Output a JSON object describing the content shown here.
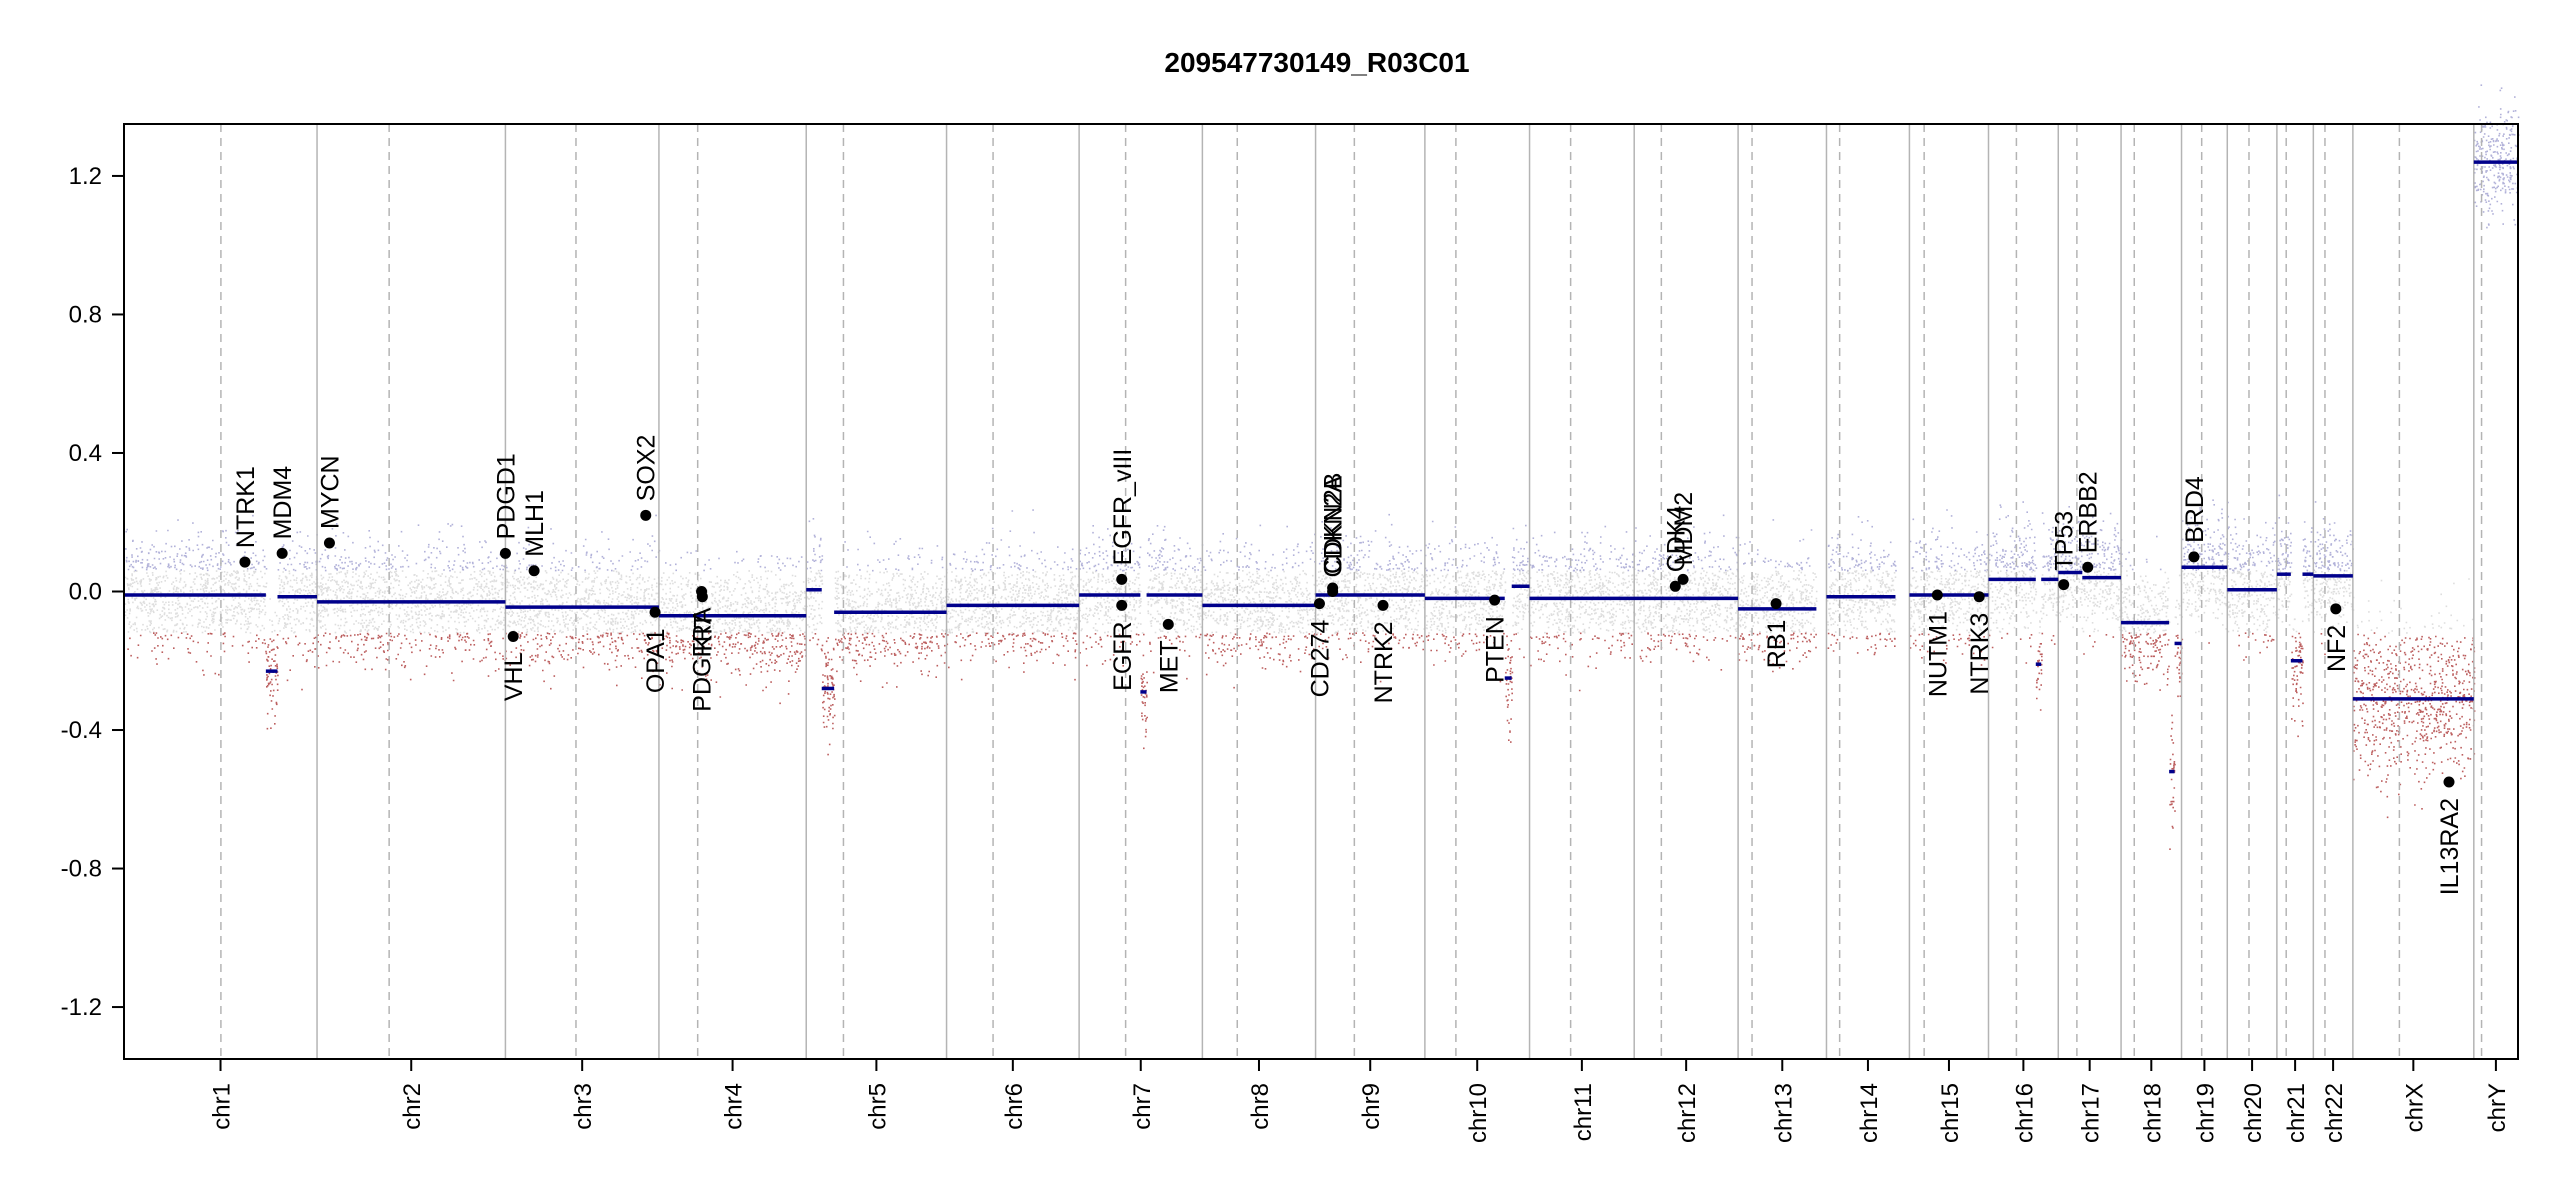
{
  "chart_data": {
    "type": "scatter",
    "title": "209547730149_R03C01",
    "xlabel": "",
    "ylabel": "",
    "ylim": [
      -1.35,
      1.35
    ],
    "yticks": [
      -1.2,
      -0.8,
      -0.4,
      0.0,
      0.4,
      0.8,
      1.2
    ],
    "grid": false,
    "colors": {
      "gain": "#7f7fbf",
      "loss": "#a52a2a",
      "neutral": "#c8c8c8",
      "segment": "#00008b",
      "point": "#000000",
      "boundary": "#b4b4b4"
    },
    "chromosomes": [
      {
        "name": "chr1",
        "start": 0,
        "end": 249,
        "centromere": 125
      },
      {
        "name": "chr2",
        "start": 249,
        "end": 492,
        "centromere": 93
      },
      {
        "name": "chr3",
        "start": 492,
        "end": 690,
        "centromere": 91
      },
      {
        "name": "chr4",
        "start": 690,
        "end": 880,
        "centromere": 50
      },
      {
        "name": "chr5",
        "start": 880,
        "end": 1061,
        "centromere": 48
      },
      {
        "name": "chr6",
        "start": 1061,
        "end": 1232,
        "centromere": 60
      },
      {
        "name": "chr7",
        "start": 1232,
        "end": 1391,
        "centromere": 60
      },
      {
        "name": "chr8",
        "start": 1391,
        "end": 1537,
        "centromere": 45
      },
      {
        "name": "chr9",
        "start": 1537,
        "end": 1678,
        "centromere": 50
      },
      {
        "name": "chr10",
        "start": 1678,
        "end": 1813,
        "centromere": 40
      },
      {
        "name": "chr11",
        "start": 1813,
        "end": 1948,
        "centromere": 53
      },
      {
        "name": "chr12",
        "start": 1948,
        "end": 2082,
        "centromere": 35
      },
      {
        "name": "chr13",
        "start": 2082,
        "end": 2196,
        "centromere": 18
      },
      {
        "name": "chr14",
        "start": 2196,
        "end": 2303,
        "centromere": 17
      },
      {
        "name": "chr15",
        "start": 2303,
        "end": 2405,
        "centromere": 19
      },
      {
        "name": "chr16",
        "start": 2405,
        "end": 2495,
        "centromere": 36
      },
      {
        "name": "chr17",
        "start": 2495,
        "end": 2576,
        "centromere": 24
      },
      {
        "name": "chr18",
        "start": 2576,
        "end": 2654,
        "centromere": 17
      },
      {
        "name": "chr19",
        "start": 2654,
        "end": 2713,
        "centromere": 26
      },
      {
        "name": "chr20",
        "start": 2713,
        "end": 2777,
        "centromere": 28
      },
      {
        "name": "chr21",
        "start": 2777,
        "end": 2824,
        "centromere": 12
      },
      {
        "name": "chr22",
        "start": 2824,
        "end": 2875,
        "centromere": 15
      },
      {
        "name": "chrX",
        "start": 2875,
        "end": 3031,
        "centromere": 60
      },
      {
        "name": "chrY",
        "start": 3031,
        "end": 3088,
        "centromere": 10
      }
    ],
    "segments": [
      {
        "start": 0,
        "end": 183,
        "value": -0.01
      },
      {
        "start": 183,
        "end": 198,
        "value": -0.23
      },
      {
        "start": 198,
        "end": 249,
        "value": -0.015
      },
      {
        "start": 249,
        "end": 492,
        "value": -0.03
      },
      {
        "start": 492,
        "end": 690,
        "value": -0.045
      },
      {
        "start": 690,
        "end": 880,
        "value": -0.07
      },
      {
        "start": 880,
        "end": 900,
        "value": 0.005
      },
      {
        "start": 900,
        "end": 916,
        "value": -0.28
      },
      {
        "start": 916,
        "end": 1061,
        "value": -0.06
      },
      {
        "start": 1061,
        "end": 1232,
        "value": -0.04
      },
      {
        "start": 1232,
        "end": 1311,
        "value": -0.01
      },
      {
        "start": 1311,
        "end": 1319,
        "value": -0.29
      },
      {
        "start": 1319,
        "end": 1391,
        "value": -0.01
      },
      {
        "start": 1391,
        "end": 1537,
        "value": -0.04
      },
      {
        "start": 1537,
        "end": 1678,
        "value": -0.01
      },
      {
        "start": 1678,
        "end": 1781,
        "value": -0.02
      },
      {
        "start": 1781,
        "end": 1790,
        "value": -0.25
      },
      {
        "start": 1790,
        "end": 1813,
        "value": 0.015
      },
      {
        "start": 1813,
        "end": 2082,
        "value": -0.02
      },
      {
        "start": 2082,
        "end": 2183,
        "value": -0.05
      },
      {
        "start": 2196,
        "end": 2285,
        "value": -0.015
      },
      {
        "start": 2303,
        "end": 2405,
        "value": -0.01
      },
      {
        "start": 2405,
        "end": 2466,
        "value": 0.035
      },
      {
        "start": 2466,
        "end": 2473,
        "value": -0.21
      },
      {
        "start": 2473,
        "end": 2495,
        "value": 0.035
      },
      {
        "start": 2495,
        "end": 2526,
        "value": 0.055
      },
      {
        "start": 2526,
        "end": 2576,
        "value": 0.04
      },
      {
        "start": 2576,
        "end": 2638,
        "value": -0.09
      },
      {
        "start": 2638,
        "end": 2645,
        "value": -0.52
      },
      {
        "start": 2645,
        "end": 2654,
        "value": -0.15
      },
      {
        "start": 2654,
        "end": 2713,
        "value": 0.07
      },
      {
        "start": 2713,
        "end": 2777,
        "value": 0.005
      },
      {
        "start": 2777,
        "end": 2795,
        "value": 0.05
      },
      {
        "start": 2795,
        "end": 2810,
        "value": -0.2
      },
      {
        "start": 2810,
        "end": 2824,
        "value": 0.05
      },
      {
        "start": 2824,
        "end": 2875,
        "value": 0.045
      },
      {
        "start": 2875,
        "end": 3031,
        "value": -0.31
      },
      {
        "start": 3031,
        "end": 3088,
        "value": 1.24
      }
    ],
    "genes": [
      {
        "name": "NTRK1",
        "x": 156,
        "y": 0.085,
        "side": "up"
      },
      {
        "name": "MDM4",
        "x": 204,
        "y": 0.11,
        "side": "up"
      },
      {
        "name": "MYCN",
        "x": 265,
        "y": 0.14,
        "side": "up"
      },
      {
        "name": "PDGD1",
        "x": 492,
        "y": 0.11,
        "side": "up"
      },
      {
        "name": "MLH1",
        "x": 529,
        "y": 0.06,
        "side": "up"
      },
      {
        "name": "SOX2",
        "x": 673,
        "y": 0.22,
        "side": "up"
      },
      {
        "name": "EGFR_vIII",
        "x": 1287,
        "y": 0.035,
        "side": "up"
      },
      {
        "name": "CDKN2A",
        "x": 1559,
        "y": 0.0,
        "side": "up"
      },
      {
        "name": "CDKN2B",
        "x": 1559,
        "y": 0.01,
        "side": "up"
      },
      {
        "name": "CDK4",
        "x": 2001,
        "y": 0.015,
        "side": "up"
      },
      {
        "name": "MDM2",
        "x": 2011,
        "y": 0.035,
        "side": "up"
      },
      {
        "name": "TP53",
        "x": 2502,
        "y": 0.02,
        "side": "up"
      },
      {
        "name": "ERBB2",
        "x": 2533,
        "y": 0.07,
        "side": "up"
      },
      {
        "name": "BRD4",
        "x": 2670,
        "y": 0.1,
        "side": "up"
      },
      {
        "name": "VHL",
        "x": 502,
        "y": -0.13,
        "side": "down"
      },
      {
        "name": "OPA1",
        "x": 685,
        "y": -0.06,
        "side": "down"
      },
      {
        "name": "PDGFRA",
        "x": 745,
        "y": 0.0,
        "side": "down"
      },
      {
        "name": "KIT",
        "x": 746,
        "y": -0.015,
        "side": "down"
      },
      {
        "name": "EGFR",
        "x": 1287,
        "y": -0.04,
        "side": "down"
      },
      {
        "name": "MET",
        "x": 1347,
        "y": -0.095,
        "side": "down"
      },
      {
        "name": "CD274",
        "x": 1542,
        "y": -0.035,
        "side": "down"
      },
      {
        "name": "NTRK2",
        "x": 1624,
        "y": -0.04,
        "side": "down"
      },
      {
        "name": "PTEN",
        "x": 1768,
        "y": -0.025,
        "side": "down"
      },
      {
        "name": "RB1",
        "x": 2131,
        "y": -0.035,
        "side": "down"
      },
      {
        "name": "NUTM1",
        "x": 2339,
        "y": -0.01,
        "side": "down"
      },
      {
        "name": "NTRK3",
        "x": 2393,
        "y": -0.015,
        "side": "down"
      },
      {
        "name": "NF2",
        "x": 2853,
        "y": -0.05,
        "side": "down"
      },
      {
        "name": "IL13RA2",
        "x": 2999,
        "y": -0.55,
        "side": "down"
      }
    ]
  }
}
